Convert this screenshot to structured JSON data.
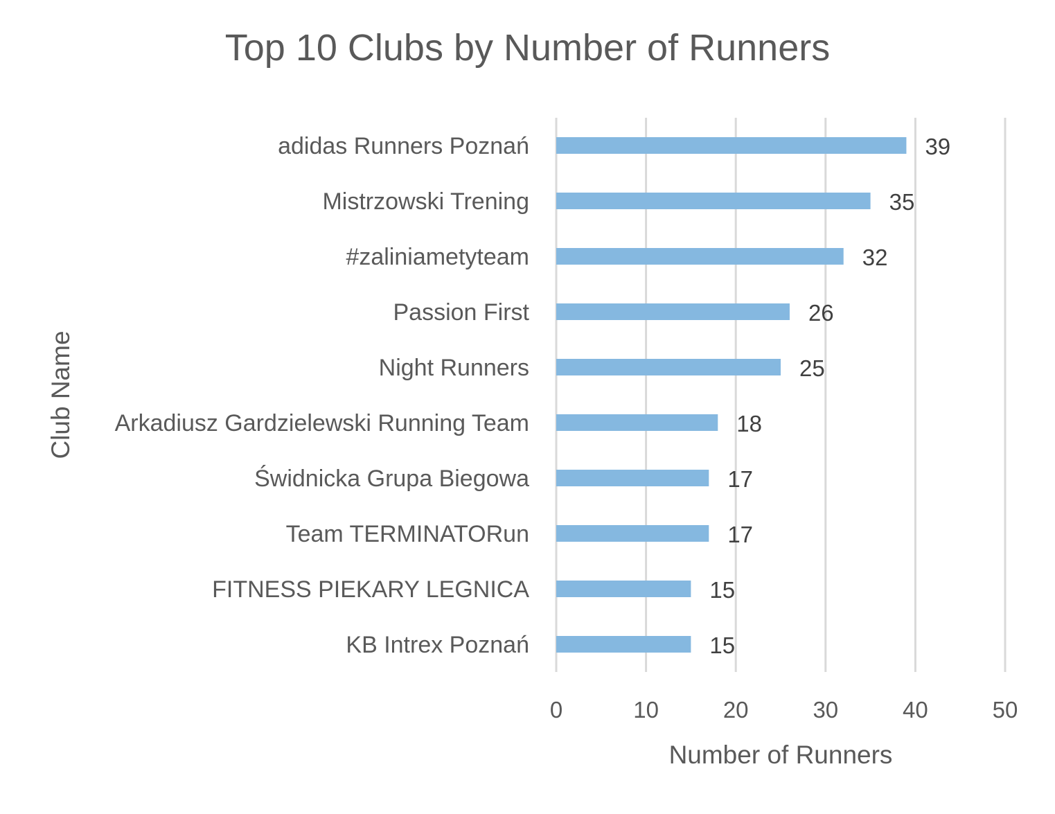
{
  "chart_data": {
    "type": "bar",
    "orientation": "horizontal",
    "title": "Top 10 Clubs by Number of Runners",
    "xlabel": "Number of Runners",
    "ylabel": "Club Name",
    "xlim": [
      0,
      50
    ],
    "xticks": [
      "0",
      "10",
      "20",
      "30",
      "40",
      "50"
    ],
    "grid": true,
    "legend": "none",
    "bar_color": "#85b8e0",
    "categories": [
      "adidas Runners Poznań",
      "Mistrzowski Trening",
      "#zaliniametyteam",
      "Passion First",
      "Night Runners",
      "Arkadiusz Gardzielewski Running Team",
      "Świdnicka Grupa Biegowa",
      "Team TERMINATORun",
      "FITNESS PIEKARY LEGNICA",
      "KB Intrex Poznań"
    ],
    "values": [
      39,
      35,
      32,
      26,
      25,
      18,
      17,
      17,
      15,
      15
    ],
    "data_labels": [
      "39",
      "35",
      "32",
      "26",
      "25",
      "18",
      "17",
      "17",
      "15",
      "15"
    ]
  }
}
